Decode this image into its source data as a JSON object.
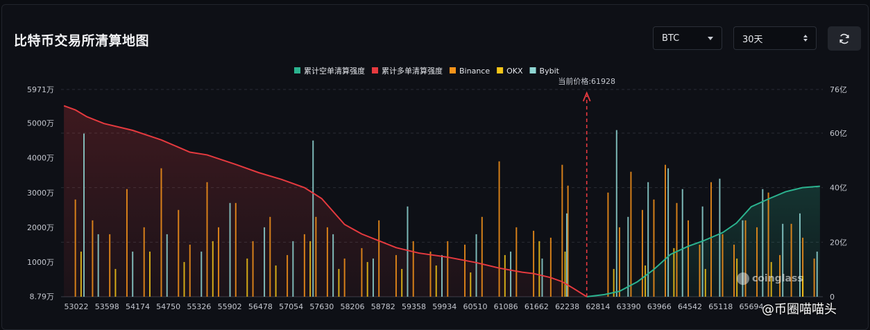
{
  "header": {
    "title": "比特币交易所清算地图",
    "coin_select": "BTC",
    "range_select": "30天"
  },
  "watermark": "coinglass",
  "credit": "@币圈喵喵头",
  "colors": {
    "short_cum": "#2bb38f",
    "long_cum": "#e63a3f",
    "binance": "#f7931a",
    "okx": "#f5c518",
    "bybit": "#8fd6d3",
    "grid": "#2a2d35",
    "price_line": "#e63a3f"
  },
  "chart_data": {
    "type": "bar",
    "title": "",
    "legend": [
      "累计空单清算强度",
      "累计多单清算强度",
      "Binance",
      "OKX",
      "Bybit"
    ],
    "legend_position": "top-center",
    "x_tick_labels": [
      "53022",
      "53598",
      "54174",
      "54750",
      "55326",
      "55902",
      "56478",
      "57054",
      "57630",
      "58206",
      "58782",
      "59358",
      "59934",
      "60510",
      "61086",
      "61662",
      "62238",
      "62814",
      "63390",
      "63966",
      "64542",
      "65118",
      "65694"
    ],
    "x_range": [
      52750,
      66050
    ],
    "y_left": {
      "tick_labels": [
        "8.79万",
        "1000万",
        "2000万",
        "3000万",
        "4000万",
        "5000万",
        "5971万"
      ],
      "tick_values": [
        87900,
        10000000,
        20000000,
        30000000,
        40000000,
        50000000,
        59710000
      ],
      "range": [
        0,
        59710000
      ],
      "unit": "USD"
    },
    "y_right": {
      "tick_labels": [
        "0",
        "20亿",
        "40亿",
        "60亿",
        "76亿"
      ],
      "tick_values": [
        0,
        2000000000,
        4000000000,
        6000000000,
        7600000000
      ],
      "range": [
        0,
        7600000000
      ],
      "unit": "USD"
    },
    "current_price": {
      "label": "当前价格:61928",
      "value": 61928
    },
    "grid": true,
    "series": [
      {
        "name": "累计多单清算强度",
        "type": "area",
        "axis": "right",
        "x": [
          52800,
          53000,
          53200,
          53500,
          54000,
          54500,
          55000,
          55300,
          55800,
          56200,
          56600,
          57000,
          57300,
          57700,
          58000,
          58300,
          58600,
          59000,
          59500,
          60000,
          60400,
          60800,
          61000,
          61300,
          61500,
          61700,
          61928
        ],
        "values": [
          7000000000,
          6850000000,
          6600000000,
          6350000000,
          6100000000,
          5750000000,
          5300000000,
          5200000000,
          4850000000,
          4550000000,
          4300000000,
          4000000000,
          3600000000,
          2650000000,
          2300000000,
          2050000000,
          1800000000,
          1600000000,
          1450000000,
          1250000000,
          1050000000,
          900000000,
          850000000,
          700000000,
          550000000,
          300000000,
          0
        ]
      },
      {
        "name": "累计空单清算强度",
        "type": "area",
        "axis": "right",
        "x": [
          61928,
          62238,
          62500,
          62814,
          63100,
          63390,
          63700,
          63966,
          64300,
          64542,
          64800,
          65118,
          65400,
          65694,
          66000
        ],
        "values": [
          0,
          80000000,
          200000000,
          550000000,
          1000000000,
          1550000000,
          1850000000,
          2050000000,
          2350000000,
          2700000000,
          3300000000,
          3600000000,
          3850000000,
          4000000000,
          4050000000
        ]
      },
      {
        "name": "Binance",
        "type": "bar",
        "axis": "left",
        "x": [
          53000,
          53300,
          53600,
          53900,
          54200,
          54500,
          54800,
          55000,
          55300,
          55500,
          55800,
          56100,
          56400,
          56700,
          57000,
          57200,
          57400,
          57700,
          58000,
          58300,
          58600,
          58900,
          59200,
          59500,
          59800,
          60100,
          60400,
          60700,
          61000,
          61300,
          61500,
          61600,
          62300,
          62500,
          62700,
          62900,
          63100,
          63300,
          63500,
          63700,
          63900,
          64100,
          64300,
          64500,
          64700,
          64900,
          65100,
          65300,
          65500,
          65700,
          65900
        ],
        "values": [
          28000000,
          22000000,
          18000000,
          31000000,
          20000000,
          37000000,
          25000000,
          15000000,
          33000000,
          20000000,
          27000000,
          16000000,
          23000000,
          12000000,
          18000000,
          23000000,
          20000000,
          11000000,
          14000000,
          22000000,
          12000000,
          16000000,
          13000000,
          16000000,
          15000000,
          23000000,
          39000000,
          20000000,
          19000000,
          17000000,
          38000000,
          32000000,
          30000000,
          20000000,
          36000000,
          25000000,
          28000000,
          38000000,
          27000000,
          22000000,
          15000000,
          33000000,
          18000000,
          15000000,
          22000000,
          20000000,
          30000000,
          12000000,
          21000000,
          17000000,
          11000000
        ]
      },
      {
        "name": "OKX",
        "type": "bar",
        "axis": "left",
        "x": [
          53100,
          53700,
          54300,
          54900,
          55400,
          56000,
          56500,
          57100,
          57600,
          58100,
          58700,
          59300,
          59900,
          60500,
          61100,
          61550,
          62400,
          62950,
          63450,
          64000,
          64550,
          65150,
          65700
        ],
        "values": [
          13000000,
          8000000,
          13000000,
          10000000,
          16000000,
          11000000,
          9000000,
          16000000,
          8000000,
          10000000,
          8000000,
          9000000,
          7000000,
          12000000,
          16000000,
          13000000,
          8000000,
          9000000,
          14000000,
          8000000,
          11000000,
          10000000,
          6000000
        ]
      },
      {
        "name": "Bybit",
        "type": "bar",
        "axis": "left",
        "x": [
          53150,
          53400,
          54000,
          54600,
          55200,
          55700,
          56300,
          56800,
          57150,
          57500,
          58200,
          58800,
          59400,
          60000,
          60600,
          61150,
          61580,
          62450,
          62650,
          63000,
          63350,
          63600,
          63950,
          64250,
          64650,
          65000,
          65350,
          65650,
          65950
        ],
        "values": [
          47000000,
          18000000,
          13000000,
          18000000,
          13000000,
          27000000,
          20000000,
          16000000,
          45000000,
          18000000,
          11000000,
          26000000,
          12000000,
          18000000,
          13000000,
          11000000,
          24000000,
          48000000,
          23000000,
          33000000,
          37000000,
          31000000,
          26000000,
          34000000,
          22000000,
          31000000,
          21000000,
          24000000,
          13000000
        ]
      }
    ]
  }
}
